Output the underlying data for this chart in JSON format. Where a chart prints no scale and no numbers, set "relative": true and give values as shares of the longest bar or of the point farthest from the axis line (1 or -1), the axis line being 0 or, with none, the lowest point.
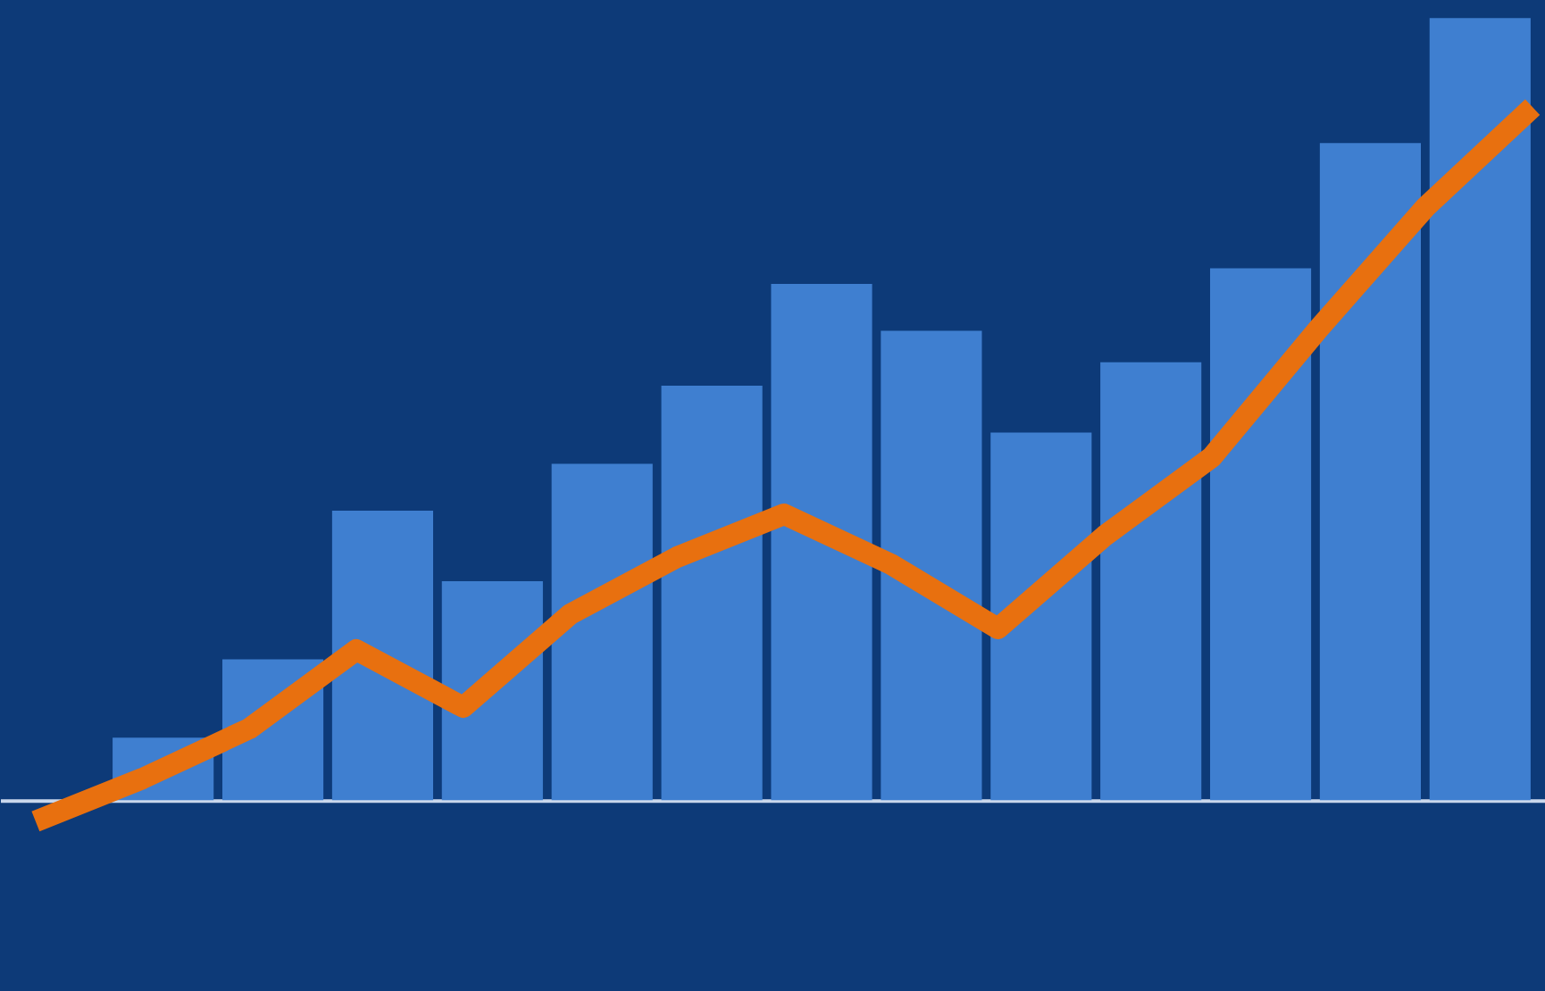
{
  "chart_data": [
    {
      "type": "bar",
      "relative": true,
      "categories": [
        null,
        null,
        null,
        null,
        null,
        null,
        null,
        null,
        null,
        null,
        null,
        null,
        null
      ],
      "series": [
        {
          "color": "#3f7fd0",
          "values": [
            0.08,
            0.18,
            0.37,
            0.28,
            0.43,
            0.53,
            0.66,
            0.6,
            0.47,
            0.56,
            0.68,
            0.84,
            1.0
          ]
        }
      ]
    },
    {
      "type": "line",
      "relative": true,
      "categories": [
        null,
        null,
        null,
        null,
        null,
        null,
        null,
        null,
        null,
        null,
        null,
        null,
        null,
        null,
        null
      ],
      "series": [
        {
          "color": "#e8700f",
          "values": [
            0,
            0.06,
            0.13,
            0.24,
            0.16,
            0.29,
            0.37,
            0.43,
            0.36,
            0.27,
            0.4,
            0.51,
            0.69,
            0.86,
            1.0
          ]
        }
      ]
    }
  ]
}
